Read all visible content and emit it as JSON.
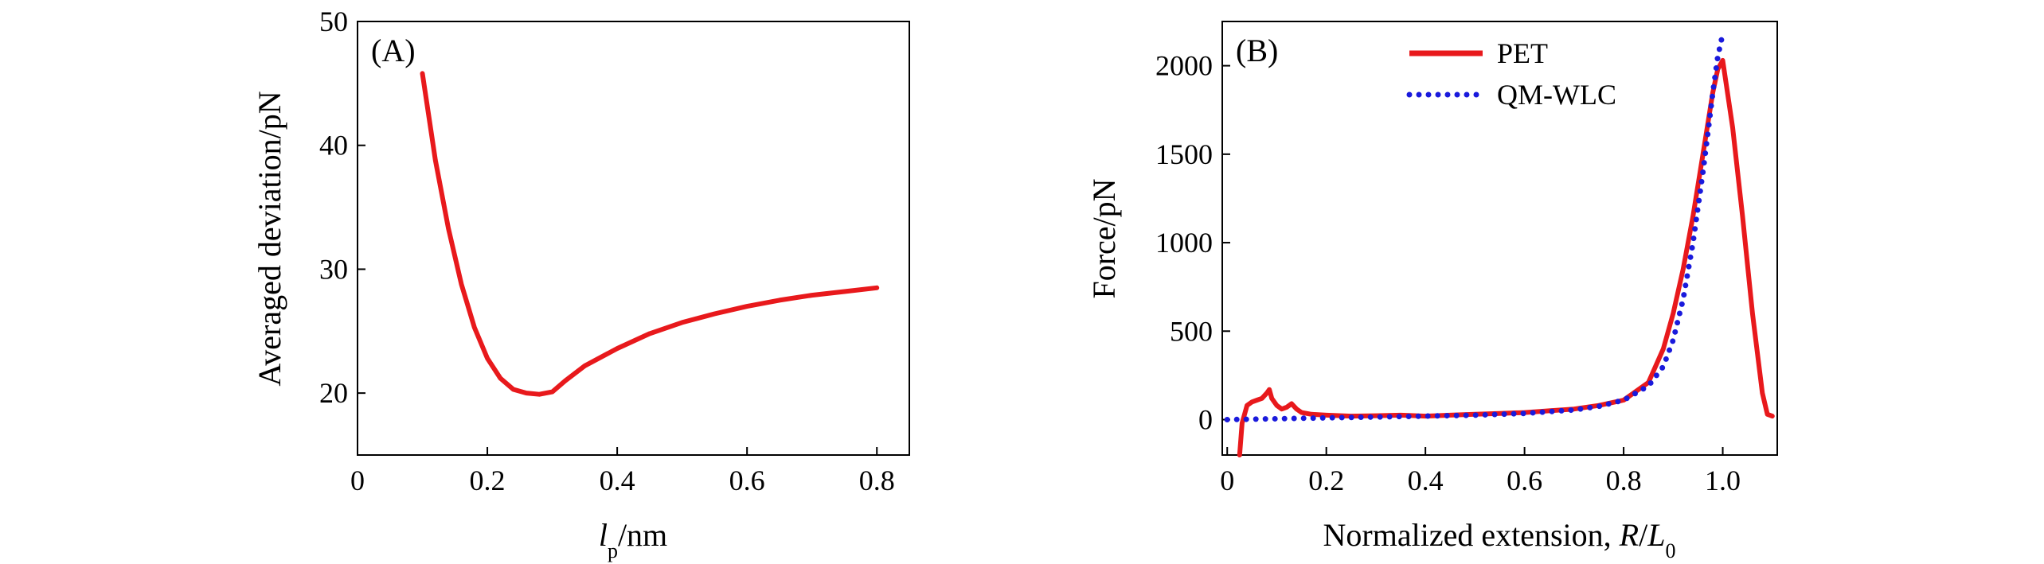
{
  "chart_data": [
    {
      "type": "line",
      "panel_label": "(A)",
      "xlabel_var": "l",
      "xlabel_sub": "p",
      "xlabel_unit": "/nm",
      "ylabel": "Averaged deviation/pN",
      "xlim": [
        0,
        0.85
      ],
      "ylim": [
        15,
        50
      ],
      "xticks": [
        0,
        0.2,
        0.4,
        0.6,
        0.8
      ],
      "xtick_labels": [
        "0",
        "0.2",
        "0.4",
        "0.6",
        "0.8"
      ],
      "yticks": [
        20,
        30,
        40,
        50
      ],
      "ytick_labels": [
        "20",
        "30",
        "40",
        "50"
      ],
      "series": [
        {
          "color": "#e8191c",
          "style": "solid",
          "x": [
            0.1,
            0.12,
            0.14,
            0.16,
            0.18,
            0.2,
            0.22,
            0.24,
            0.26,
            0.28,
            0.3,
            0.32,
            0.35,
            0.4,
            0.45,
            0.5,
            0.55,
            0.6,
            0.65,
            0.7,
            0.75,
            0.8
          ],
          "y": [
            45.8,
            38.8,
            33.3,
            28.8,
            25.3,
            22.8,
            21.2,
            20.3,
            20.0,
            19.9,
            20.1,
            21.0,
            22.2,
            23.6,
            24.8,
            25.7,
            26.4,
            27.0,
            27.5,
            27.9,
            28.2,
            28.5
          ]
        }
      ]
    },
    {
      "type": "line",
      "panel_label": "(B)",
      "xlabel_text": "Normalized extension, ",
      "xlabel_var": "R",
      "xlabel_sep": "/",
      "xlabel_var2": "L",
      "xlabel_sub2": "0",
      "ylabel": "Force/pN",
      "xlim": [
        -0.01,
        1.11
      ],
      "ylim": [
        -200,
        2250
      ],
      "xticks": [
        0,
        0.2,
        0.4,
        0.6,
        0.8,
        1.0
      ],
      "xtick_labels": [
        "0",
        "0.2",
        "0.4",
        "0.6",
        "0.8",
        "1.0"
      ],
      "yticks": [
        0,
        500,
        1000,
        1500,
        2000
      ],
      "ytick_labels": [
        "0",
        "500",
        "1000",
        "1500",
        "2000"
      ],
      "legend_position": "top-center",
      "series": [
        {
          "name": "PET",
          "color": "#e8191c",
          "style": "solid",
          "x": [
            0.025,
            0.03,
            0.04,
            0.05,
            0.06,
            0.07,
            0.08,
            0.085,
            0.09,
            0.1,
            0.11,
            0.12,
            0.13,
            0.14,
            0.15,
            0.17,
            0.2,
            0.25,
            0.3,
            0.35,
            0.4,
            0.45,
            0.5,
            0.55,
            0.6,
            0.65,
            0.7,
            0.75,
            0.8,
            0.85,
            0.88,
            0.9,
            0.92,
            0.94,
            0.96,
            0.98,
            0.99,
            1.0,
            1.02,
            1.04,
            1.06,
            1.08,
            1.09,
            1.1
          ],
          "y": [
            -200,
            -20,
            80,
            100,
            110,
            120,
            150,
            170,
            120,
            80,
            60,
            70,
            90,
            60,
            40,
            30,
            25,
            20,
            22,
            25,
            20,
            25,
            30,
            35,
            40,
            50,
            60,
            80,
            110,
            210,
            400,
            600,
            850,
            1150,
            1500,
            1850,
            1980,
            2030,
            1650,
            1150,
            600,
            150,
            30,
            20
          ]
        },
        {
          "name": "QM-WLC",
          "color": "#1a1adc",
          "style": "dotted",
          "x": [
            0,
            0.1,
            0.2,
            0.3,
            0.4,
            0.5,
            0.6,
            0.7,
            0.75,
            0.8,
            0.85,
            0.88,
            0.9,
            0.92,
            0.94,
            0.96,
            0.97,
            0.98,
            0.99,
            1.0
          ],
          "y": [
            0,
            5,
            10,
            15,
            20,
            25,
            35,
            55,
            75,
            110,
            190,
            300,
            450,
            680,
            1000,
            1400,
            1620,
            1850,
            2050,
            2180
          ]
        }
      ]
    }
  ]
}
